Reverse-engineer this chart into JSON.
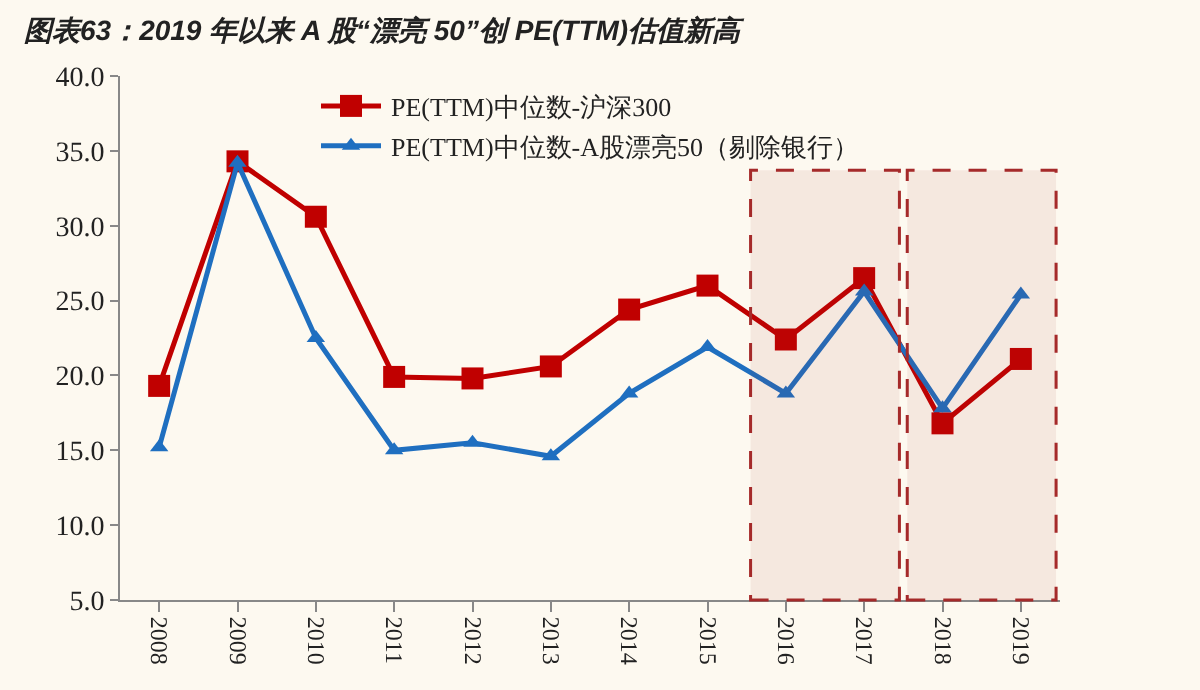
{
  "chart_data": {
    "type": "line",
    "title": "图表63：2019 年以来 A 股“漂亮 50”创 PE(TTM)估值新高",
    "categories": [
      "2008",
      "2009",
      "2010",
      "2011",
      "2012",
      "2013",
      "2014",
      "2015",
      "2016",
      "2017",
      "2018",
      "2019"
    ],
    "series": [
      {
        "name": "PE(TTM)中位数-沪深300",
        "color": "#c00000",
        "marker": "square",
        "values": [
          19.3,
          34.3,
          30.6,
          19.9,
          19.8,
          20.6,
          24.4,
          26.0,
          22.4,
          26.5,
          16.8,
          21.1
        ]
      },
      {
        "name": "PE(TTM)中位数-A股漂亮50（剔除银行）",
        "color": "#1f6fc0",
        "marker": "triangle",
        "values": [
          15.2,
          34.2,
          22.5,
          15.0,
          15.5,
          14.6,
          18.8,
          21.9,
          18.8,
          25.6,
          17.8,
          25.4
        ]
      }
    ],
    "ylim": [
      5,
      40
    ],
    "yticks": [
      {
        "value": 5,
        "label": "5.0"
      },
      {
        "value": 10,
        "label": "10.0"
      },
      {
        "value": 15,
        "label": "15.0"
      },
      {
        "value": 20,
        "label": "20.0"
      },
      {
        "value": 25,
        "label": "25.0"
      },
      {
        "value": 30,
        "label": "30.0"
      },
      {
        "value": 35,
        "label": "35.0"
      },
      {
        "value": 40,
        "label": "40.0"
      }
    ],
    "bands": [
      {
        "axis": "x",
        "from": "2016",
        "to": "2017",
        "color": "#a52a2a"
      },
      {
        "axis": "x",
        "from": "2018",
        "to": "2019",
        "color": "#a52a2a"
      }
    ],
    "grid": false,
    "legend": "top",
    "line_style": "solid"
  }
}
